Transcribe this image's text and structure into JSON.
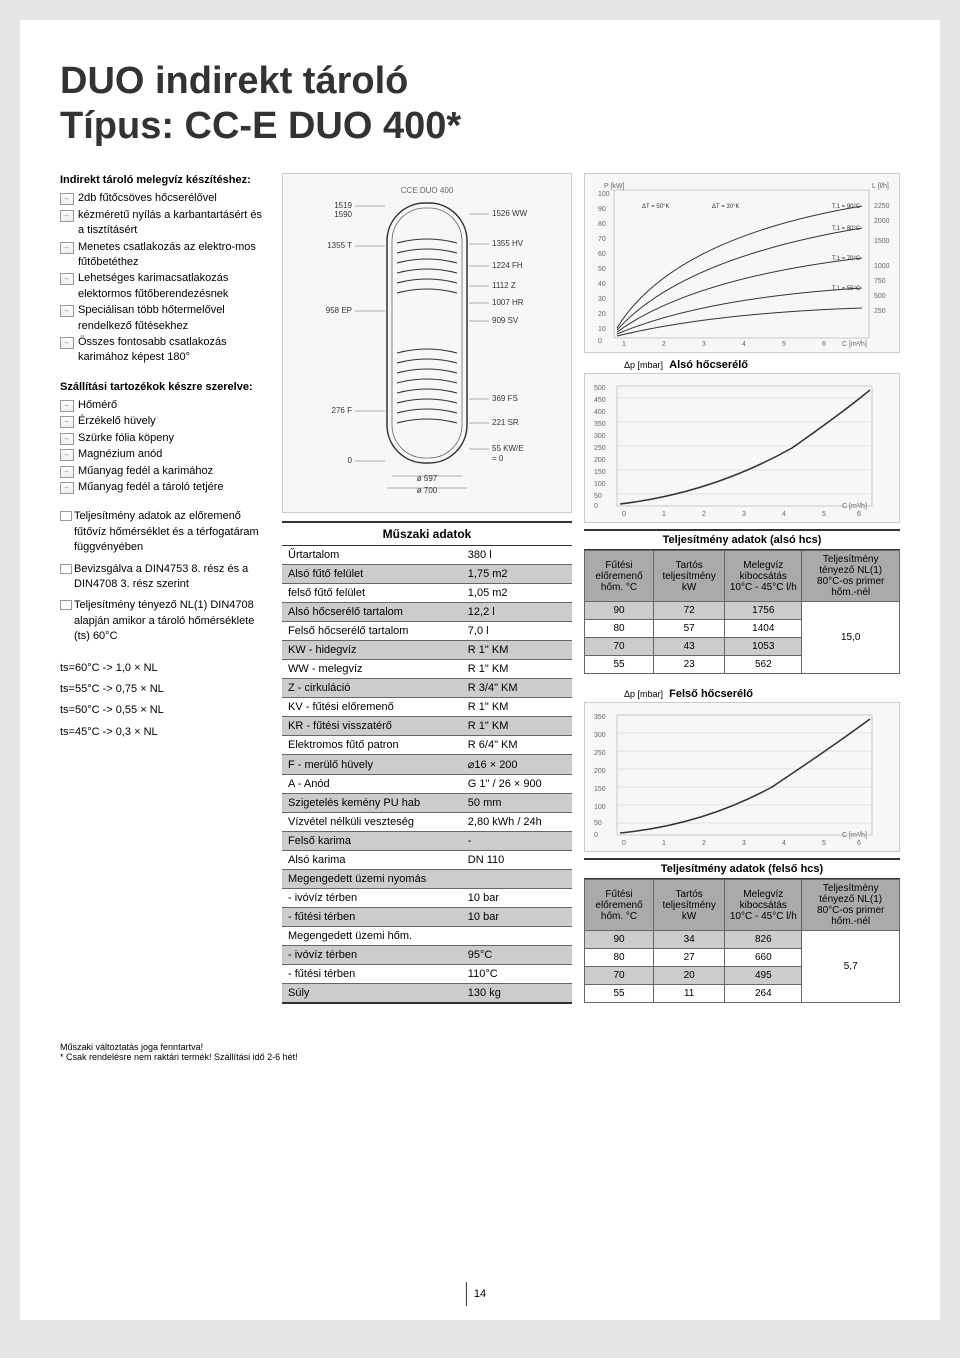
{
  "title_line1": "DUO indirekt tároló",
  "title_line2": "Típus: CC-E DUO 400*",
  "intro_head": "Indirekt tároló melegvíz készítéshez:",
  "intro_bullets": [
    "2db fűtőcsöves hőcserélővel",
    "kézméretű nyílás a karbantartásért és a tisztításért",
    "Menetes csatlakozás az elektro-mos fűtőbetéthez",
    "Lehetséges karimacsatlakozás elektormos fűtőberendezésnek",
    "Speciálisan több hőtermelővel rendelkező fűtésekhez",
    "Összes fontosabb csatlakozás karimához képest 180°"
  ],
  "accessories_head": "Szállítási tartozékok készre szerelve:",
  "accessories_bullets": [
    "Hőmérő",
    "Érzékelő hüvely",
    "Szürke fólia köpeny",
    "Magnézium anód",
    "Műanyag fedél a karimához",
    "Műanyag fedél a tároló tetjére"
  ],
  "notes": [
    "Teljesítmény adatok az előremenő fűtővíz hőmérséklet és a térfogatáram függvényében",
    "Bevizsgálva a DIN4753 8. rész és a DIN4708 3. rész szerint",
    "Teljesítmény tényező NL(1) DIN4708 alapján amikor a tároló hőmérséklete (ts) 60°C"
  ],
  "ts_lines": [
    "ts=60°C -> 1,0 × NL",
    "ts=55°C -> 0,75 × NL",
    "ts=50°C -> 0,55 × NL",
    "ts=45°C -> 0,3 × NL"
  ],
  "spec_caption": "Műszaki adatok",
  "spec_rows": [
    {
      "label": "Űrtartalom",
      "value": "380 l",
      "shade": false
    },
    {
      "label": "Alsó fűtő felület",
      "value": "1,75 m2",
      "shade": true
    },
    {
      "label": "felső fűtő felület",
      "value": "1,05 m2",
      "shade": false
    },
    {
      "label": "Alsó hőcserélő tartalom",
      "value": "12,2 l",
      "shade": true
    },
    {
      "label": "Felső hőcserélő tartalom",
      "value": "7,0 l",
      "shade": false
    },
    {
      "label": "KW - hidegvíz",
      "value": "R 1\" KM",
      "shade": true
    },
    {
      "label": "WW - melegvíz",
      "value": "R 1\" KM",
      "shade": false
    },
    {
      "label": "Z - cirkuláció",
      "value": "R 3/4\" KM",
      "shade": true
    },
    {
      "label": "KV - fűtési előremenő",
      "value": "R 1\" KM",
      "shade": false
    },
    {
      "label": "KR - fűtési visszatérő",
      "value": "R 1\" KM",
      "shade": true
    },
    {
      "label": "Elektromos fűtő patron",
      "value": "R 6/4\" KM",
      "shade": false
    },
    {
      "label": "F - merülő hüvely",
      "value": "⌀16 × 200",
      "shade": true
    },
    {
      "label": "A - Anód",
      "value": "G 1\" / 26 × 900",
      "shade": false
    },
    {
      "label": "Szigetelés kemény PU hab",
      "value": "50 mm",
      "shade": true
    },
    {
      "label": "Vízvétel nélküli veszteség",
      "value": "2,80 kWh / 24h",
      "shade": false
    },
    {
      "label": "Felső karima",
      "value": "-",
      "shade": true
    },
    {
      "label": "Alsó karima",
      "value": "DN 110",
      "shade": false
    },
    {
      "label": "Megengedett üzemi nyomás",
      "value": "",
      "shade": true
    },
    {
      "label": " - ivóvíz térben",
      "value": "10 bar",
      "shade": false
    },
    {
      "label": " - fűtési térben",
      "value": "10 bar",
      "shade": true
    },
    {
      "label": "Megengedett üzemi hőm.",
      "value": "",
      "shade": false
    },
    {
      "label": " - ivóvíz térben",
      "value": "95°C",
      "shade": true
    },
    {
      "label": " - fűtési térben",
      "value": "110°C",
      "shade": false
    },
    {
      "label": "Súly",
      "value": "130 kg",
      "shade": true
    }
  ],
  "chart_top_label": "Alsó hőcserélő",
  "chart_bottom_label": "Felső hőcserélő",
  "perf_caption_lower": "Teljesítmény adatok (alsó hcs)",
  "perf_caption_upper": "Teljesítmény adatok (felső hcs)",
  "perf_headers": [
    "Fűtési előremenő hőm. °C",
    "Tartós teljesítmény kW",
    "Melegvíz kibocsátás 10°C - 45°C l/h",
    "Teljesítmény tényező NL(1) 80°C-os primer hőm.-nél"
  ],
  "perf_lower_rows": [
    {
      "c1": "90",
      "c2": "72",
      "c3": "1756",
      "shade": true
    },
    {
      "c1": "80",
      "c2": "57",
      "c3": "1404",
      "shade": false
    },
    {
      "c1": "70",
      "c2": "43",
      "c3": "1053",
      "shade": true
    },
    {
      "c1": "55",
      "c2": "23",
      "c3": "562",
      "shade": false
    }
  ],
  "perf_lower_nl": "15,0",
  "perf_upper_rows": [
    {
      "c1": "90",
      "c2": "34",
      "c3": "826",
      "shade": true
    },
    {
      "c1": "80",
      "c2": "27",
      "c3": "660",
      "shade": false
    },
    {
      "c1": "70",
      "c2": "20",
      "c3": "495",
      "shade": true
    },
    {
      "c1": "55",
      "c2": "11",
      "c3": "264",
      "shade": false
    }
  ],
  "perf_upper_nl": "5,7",
  "footer_note1": "Műszaki változtatás joga fenntartva!",
  "footer_note2": "* Csak rendelésre nem raktári termék! Szállítási idő 2-6 hét!",
  "page_number": "14",
  "diagram_labels_left": [
    "1519",
    "1590",
    "1355 T",
    "958 EP",
    "276 F",
    "0"
  ],
  "diagram_labels_right": [
    "1526 WW",
    "1355 HV",
    "1224 FH",
    "1112 Z",
    "1007 HR",
    "909 SV",
    "369 FS",
    "221 SR",
    "55 KW/E",
    "= 0"
  ],
  "diagram_labels_bottom": [
    "ø 597",
    "ø 700"
  ],
  "diagram_title": "CCE DUO 400"
}
